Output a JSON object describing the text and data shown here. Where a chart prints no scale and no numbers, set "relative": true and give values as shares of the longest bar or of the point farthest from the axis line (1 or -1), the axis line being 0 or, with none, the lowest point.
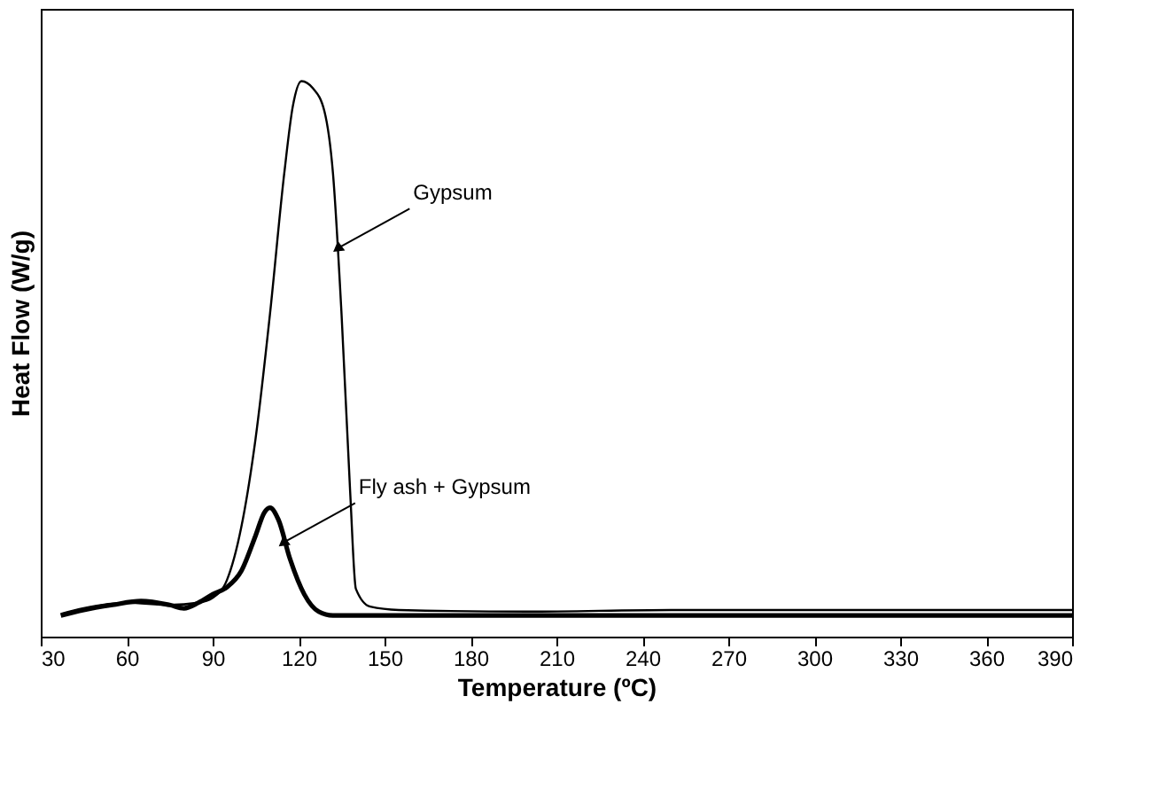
{
  "chart_data": {
    "type": "line",
    "xlabel": "Temperature (ºC)",
    "ylabel": "Heat Flow (W/g)",
    "relative": true,
    "xlim": [
      30,
      390
    ],
    "xticks": [
      30,
      60,
      90,
      120,
      150,
      180,
      210,
      240,
      270,
      300,
      330,
      360,
      390
    ],
    "tick_labels": "x",
    "grid": false,
    "marker": "none",
    "line_style": "solid",
    "series": [
      {
        "color": "#000000",
        "x": [
          37,
          45,
          60,
          75,
          85,
          90,
          95,
          100,
          105,
          110,
          115,
          118,
          121,
          125,
          129,
          132,
          135,
          138,
          140,
          145,
          155,
          200,
          250,
          300,
          390
        ],
        "values": [
          0.041,
          0.051,
          0.061,
          0.057,
          0.061,
          0.07,
          0.102,
          0.197,
          0.357,
          0.58,
          0.834,
          0.955,
          1,
          0.987,
          0.946,
          0.834,
          0.58,
          0.261,
          0.086,
          0.054,
          0.048,
          0.045,
          0.048,
          0.048,
          0.048
        ]
      },
      {
        "color": "#000000",
        "x": [
          37,
          45,
          55,
          65,
          75,
          80,
          85,
          90,
          95,
          100,
          105,
          108,
          110,
          113,
          117,
          122,
          127,
          132,
          140,
          200,
          300,
          390
        ],
        "values": [
          0.038,
          0.048,
          0.057,
          0.064,
          0.057,
          0.051,
          0.061,
          0.076,
          0.089,
          0.118,
          0.182,
          0.223,
          0.232,
          0.21,
          0.14,
          0.076,
          0.045,
          0.038,
          0.038,
          0.038,
          0.038,
          0.038
        ]
      }
    ],
    "annotations": [
      {
        "text": "Gypsum",
        "x": 134,
        "y": 0.7
      },
      {
        "text": "Fly ash + Gypsum",
        "x": 115,
        "y": 0.17
      }
    ]
  }
}
